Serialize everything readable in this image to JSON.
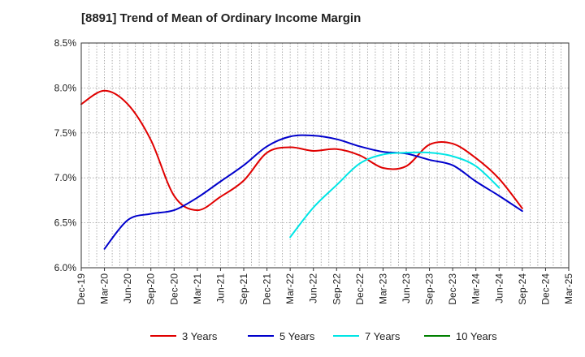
{
  "chart_data": {
    "type": "line",
    "title": "[8891]  Trend of Mean of Ordinary Income Margin",
    "xlabel": "",
    "ylabel": "",
    "y_unit": "%",
    "ylim": [
      6.0,
      8.5
    ],
    "yticks": [
      "6.0%",
      "6.5%",
      "7.0%",
      "7.5%",
      "8.0%",
      "8.5%"
    ],
    "x_tick_labels": [
      "Dec-19",
      "Mar-20",
      "Jun-20",
      "Sep-20",
      "Dec-20",
      "Mar-21",
      "Jun-21",
      "Sep-21",
      "Dec-21",
      "Mar-22",
      "Jun-22",
      "Sep-22",
      "Dec-22",
      "Mar-23",
      "Jun-23",
      "Sep-23",
      "Dec-23",
      "Mar-24",
      "Jun-24",
      "Sep-24",
      "Dec-24",
      "Mar-25"
    ],
    "grid": true,
    "legend_position": "bottom",
    "series": [
      {
        "name": "3 Years",
        "color": "#e00000",
        "start_index": 0,
        "values": [
          7.82,
          7.97,
          7.82,
          7.42,
          6.8,
          6.64,
          6.79,
          6.97,
          7.28,
          7.34,
          7.3,
          7.32,
          7.25,
          7.11,
          7.13,
          7.37,
          7.38,
          7.22,
          6.99,
          6.66
        ]
      },
      {
        "name": "5 Years",
        "color": "#0000cc",
        "start_index": 1,
        "values": [
          6.21,
          6.53,
          6.6,
          6.64,
          6.78,
          6.96,
          7.14,
          7.35,
          7.46,
          7.47,
          7.43,
          7.35,
          7.29,
          7.27,
          7.2,
          7.14,
          6.96,
          6.8,
          6.63
        ]
      },
      {
        "name": "7 Years",
        "color": "#00e5e5",
        "start_index": 9,
        "values": [
          6.34,
          6.67,
          6.92,
          7.16,
          7.26,
          7.28,
          7.28,
          7.24,
          7.13,
          6.89
        ]
      },
      {
        "name": "10 Years",
        "color": "#008000",
        "start_index": 0,
        "values": []
      }
    ]
  }
}
